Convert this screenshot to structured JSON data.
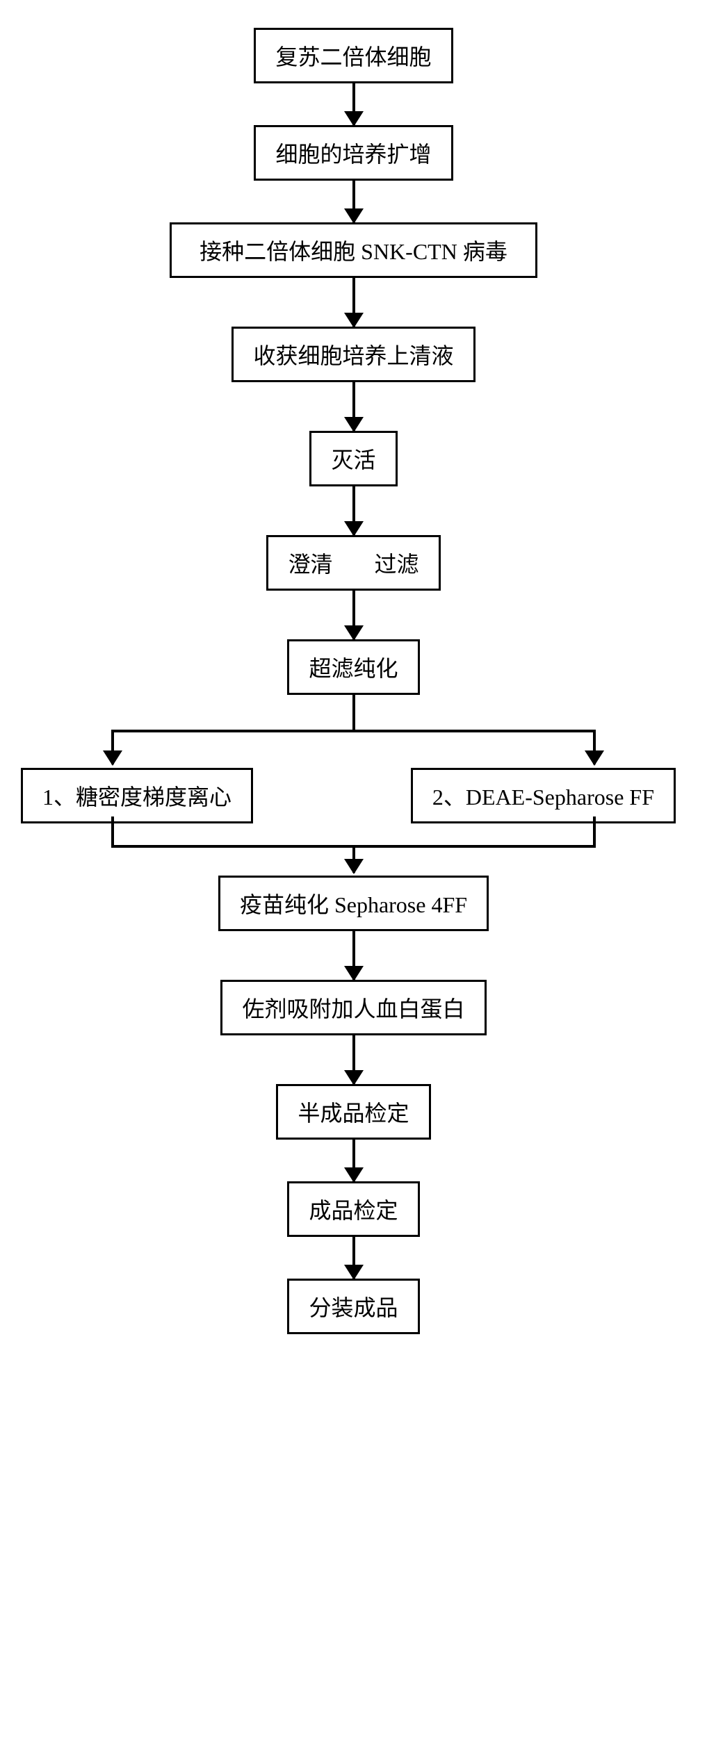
{
  "flowchart": {
    "type": "flowchart",
    "background_color": "#ffffff",
    "border_color": "#000000",
    "border_width": 3,
    "text_color": "#000000",
    "font_size": 32,
    "arrow_color": "#000000",
    "arrow_width": 4,
    "arrowhead_size": 22,
    "nodes": [
      {
        "id": "n1",
        "label": "复苏二倍体细胞"
      },
      {
        "id": "n2",
        "label": "细胞的培养扩增"
      },
      {
        "id": "n3",
        "label": "接种二倍体细胞 SNK-CTN 病毒"
      },
      {
        "id": "n4",
        "label": "收获细胞培养上清液"
      },
      {
        "id": "n5",
        "label": "灭活"
      },
      {
        "id": "n6",
        "label_parts": [
          "澄清",
          "过滤"
        ]
      },
      {
        "id": "n7",
        "label": "超滤纯化"
      },
      {
        "id": "n8a",
        "label": "1、糖密度梯度离心"
      },
      {
        "id": "n8b",
        "label": "2、DEAE-Sepharose FF"
      },
      {
        "id": "n9",
        "label": "疫苗纯化 Sepharose 4FF"
      },
      {
        "id": "n10",
        "label": "佐剂吸附加人血白蛋白"
      },
      {
        "id": "n11",
        "label": "半成品检定"
      },
      {
        "id": "n12",
        "label": "成品检定"
      },
      {
        "id": "n13",
        "label": "分装成品"
      }
    ],
    "edges": [
      {
        "from": "n1",
        "to": "n2"
      },
      {
        "from": "n2",
        "to": "n3"
      },
      {
        "from": "n3",
        "to": "n4"
      },
      {
        "from": "n4",
        "to": "n5"
      },
      {
        "from": "n5",
        "to": "n6"
      },
      {
        "from": "n6",
        "to": "n7"
      },
      {
        "from": "n7",
        "to": "n8a",
        "type": "split"
      },
      {
        "from": "n7",
        "to": "n8b",
        "type": "split"
      },
      {
        "from": "n8a",
        "to": "n9",
        "type": "merge"
      },
      {
        "from": "n8b",
        "to": "n9",
        "type": "merge"
      },
      {
        "from": "n9",
        "to": "n10"
      },
      {
        "from": "n10",
        "to": "n11"
      },
      {
        "from": "n11",
        "to": "n12"
      },
      {
        "from": "n12",
        "to": "n13"
      }
    ]
  }
}
